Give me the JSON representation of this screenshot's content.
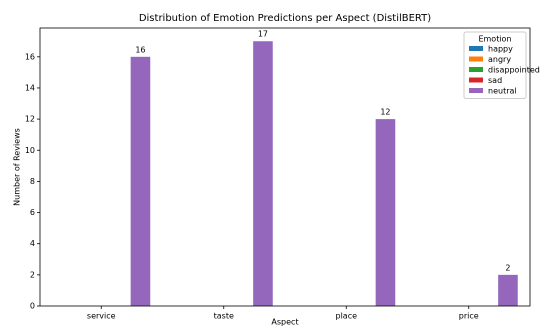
{
  "chart_data": {
    "type": "bar",
    "title": "Distribution of Emotion Predictions per Aspect (DistilBERT)",
    "x_label": "Aspect",
    "y_label": "Number of Reviews",
    "categories": [
      "service",
      "taste",
      "place",
      "price"
    ],
    "series": [
      {
        "name": "happy",
        "color": "#1f77b4",
        "values": [
          0,
          0,
          0,
          0
        ]
      },
      {
        "name": "angry",
        "color": "#ff7f0e",
        "values": [
          0,
          0,
          0,
          0
        ]
      },
      {
        "name": "disappointed",
        "color": "#2ca02c",
        "values": [
          0,
          0,
          0,
          0
        ]
      },
      {
        "name": "sad",
        "color": "#d62728",
        "values": [
          0,
          0,
          0,
          0
        ]
      },
      {
        "name": "neutral",
        "color": "#9467bd",
        "values": [
          16,
          17,
          12,
          2
        ]
      }
    ],
    "legend_title": "Emotion",
    "legend": "upper right",
    "ylim": [
      0,
      17.85
    ],
    "yticks": [
      0,
      2,
      4,
      6,
      8,
      10,
      12,
      14,
      16
    ]
  }
}
